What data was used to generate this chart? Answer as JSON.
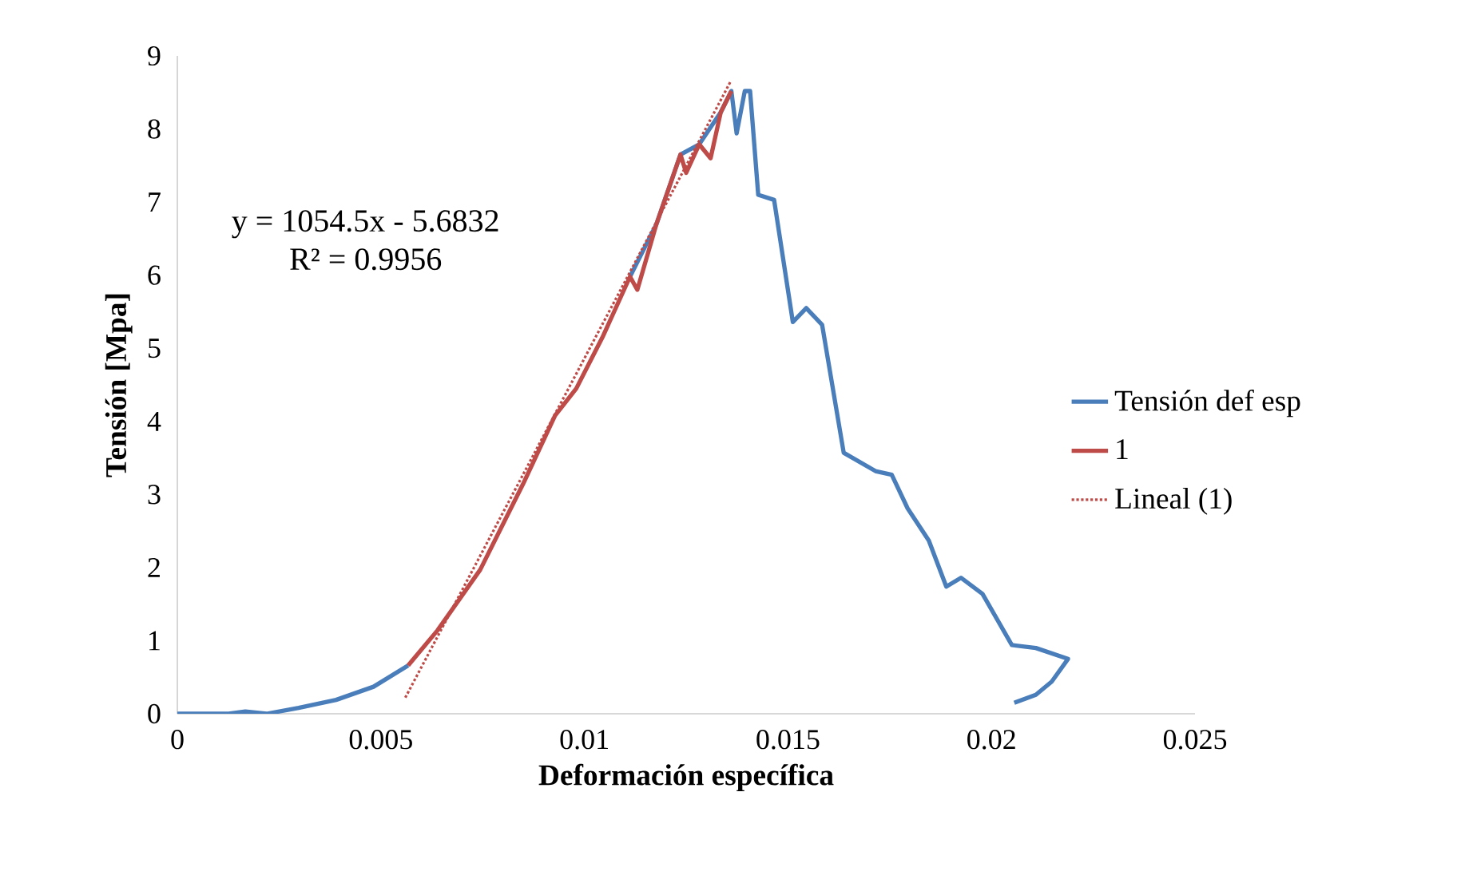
{
  "chart_data": {
    "type": "line",
    "xlabel": "Deformación específica",
    "ylabel": "Tensión  [Mpa]",
    "xlim": [
      0,
      0.025
    ],
    "ylim": [
      0,
      9
    ],
    "xticks": [
      0,
      0.005,
      0.01,
      0.015,
      0.02,
      0.025
    ],
    "yticks": [
      0,
      1,
      2,
      3,
      4,
      5,
      6,
      7,
      8,
      9
    ],
    "grid": false,
    "legend": "right",
    "line_style": "solid",
    "marker": "none",
    "annotations": [
      "y = 1054.5x - 5.6832",
      "R² = 0.9956"
    ],
    "series": [
      {
        "name": "Tensión def esp",
        "color": "#4a7ebb",
        "x": [
          0,
          0.00126,
          0.00167,
          0.00219,
          0.00298,
          0.0039,
          0.00482,
          0.00567,
          0.00639,
          0.00744,
          0.00849,
          0.00928,
          0.0098,
          0.01046,
          0.01112,
          0.01177,
          0.01236,
          0.01282,
          0.01335,
          0.01361,
          0.01374,
          0.01394,
          0.01407,
          0.01427,
          0.01466,
          0.01512,
          0.01545,
          0.01584,
          0.01637,
          0.01715,
          0.01755,
          0.01794,
          0.01846,
          0.01889,
          0.01925,
          0.01978,
          0.0205,
          0.02109,
          0.02188,
          0.02148,
          0.02109,
          0.02056
        ],
        "values": [
          0,
          0,
          0.03,
          0,
          0.08,
          0.19,
          0.37,
          0.66,
          null,
          null,
          null,
          null,
          null,
          null,
          5.98,
          6.7,
          7.65,
          7.79,
          8.23,
          8.52,
          7.94,
          8.52,
          8.52,
          7.1,
          7.03,
          5.36,
          5.55,
          5.32,
          3.57,
          3.32,
          3.27,
          2.81,
          2.37,
          1.74,
          1.86,
          1.64,
          0.94,
          0.9,
          0.75,
          0.44,
          0.26,
          0.15
        ]
      },
      {
        "name": "1",
        "color": "#be4b48",
        "x": [
          0.00567,
          0.00639,
          0.00744,
          0.00849,
          0.00928,
          0.0098,
          0.01046,
          0.01112,
          0.0113,
          0.01177,
          0.01236,
          0.0125,
          0.01282,
          0.0131,
          0.01335,
          0.01361
        ],
        "values": [
          0.66,
          1.14,
          1.97,
          3.14,
          4.08,
          4.45,
          5.17,
          5.98,
          5.8,
          6.7,
          7.65,
          7.4,
          7.79,
          7.6,
          8.23,
          8.52
        ]
      },
      {
        "name": "Lineal (1)",
        "type": "line",
        "line_style": "dotted",
        "color": "#be4b48",
        "x": [
          0.0056,
          0.0136
        ],
        "values": [
          0.22,
          8.66
        ]
      }
    ]
  }
}
